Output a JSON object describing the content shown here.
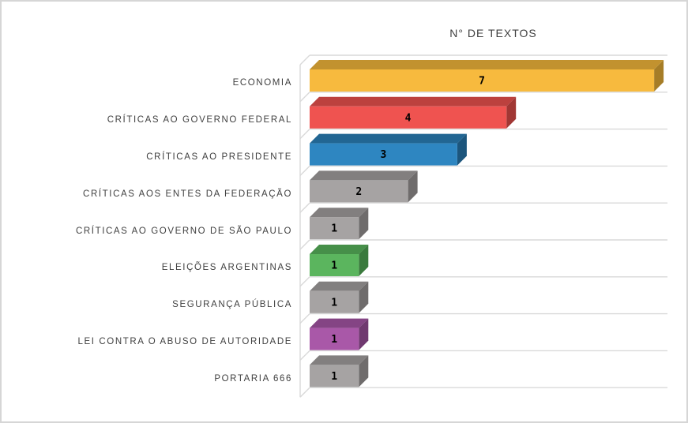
{
  "frame": {
    "background": "#FFFFFF",
    "border_color": "#D6D6D6"
  },
  "chart_data": {
    "type": "bar",
    "style": "3d-horizontal",
    "title": "N° DE TEXTOS",
    "xlabel": "",
    "ylabel": "",
    "xlim": [
      0,
      7.3
    ],
    "grid": true,
    "legend": false,
    "categories": [
      "ECONOMIA",
      "CRÍTICAS AO GOVERNO FEDERAL",
      "CRÍTICAS AO PRESIDENTE",
      "CRÍTICAS AOS ENTES DA FEDERAÇÃO",
      "CRÍTICAS AO GOVERNO DE SÃO PAULO",
      "ELEIÇÕES ARGENTINAS",
      "SEGURANÇA PÚBLICA",
      "LEI CONTRA O ABUSO DE AUTORIDADE",
      "PORTARIA 666"
    ],
    "values": [
      7,
      4,
      3,
      2,
      1,
      1,
      1,
      1,
      1
    ],
    "data_labels": [
      "7",
      "4",
      "3",
      "2",
      "1",
      "1",
      "1",
      "1",
      "1"
    ],
    "bar_colors": [
      {
        "name": "gold",
        "front": "#F7BA3E",
        "top": "#C2922F",
        "side": "#A67D27"
      },
      {
        "name": "red",
        "front": "#EF5350",
        "top": "#BC413E",
        "side": "#A13734"
      },
      {
        "name": "blue",
        "front": "#2E86C1",
        "top": "#226693",
        "side": "#1C567D"
      },
      {
        "name": "gray",
        "front": "#A6A3A3",
        "top": "#827F7F",
        "side": "#6F6C6C"
      },
      {
        "name": "gray",
        "front": "#A6A3A3",
        "top": "#827F7F",
        "side": "#6F6C6C"
      },
      {
        "name": "green",
        "front": "#5BB55E",
        "top": "#468F49",
        "side": "#3A7A3D"
      },
      {
        "name": "gray",
        "front": "#A6A3A3",
        "top": "#827F7F",
        "side": "#6F6C6C"
      },
      {
        "name": "purple",
        "front": "#A958A8",
        "top": "#844484",
        "side": "#703970"
      },
      {
        "name": "gray",
        "front": "#A6A3A3",
        "top": "#827F7F",
        "side": "#6F6C6C"
      }
    ],
    "gridline_color": "#D9D9D9",
    "category_label_color": "#404040",
    "title_color": "#404040",
    "value_label_color": "#000000"
  }
}
